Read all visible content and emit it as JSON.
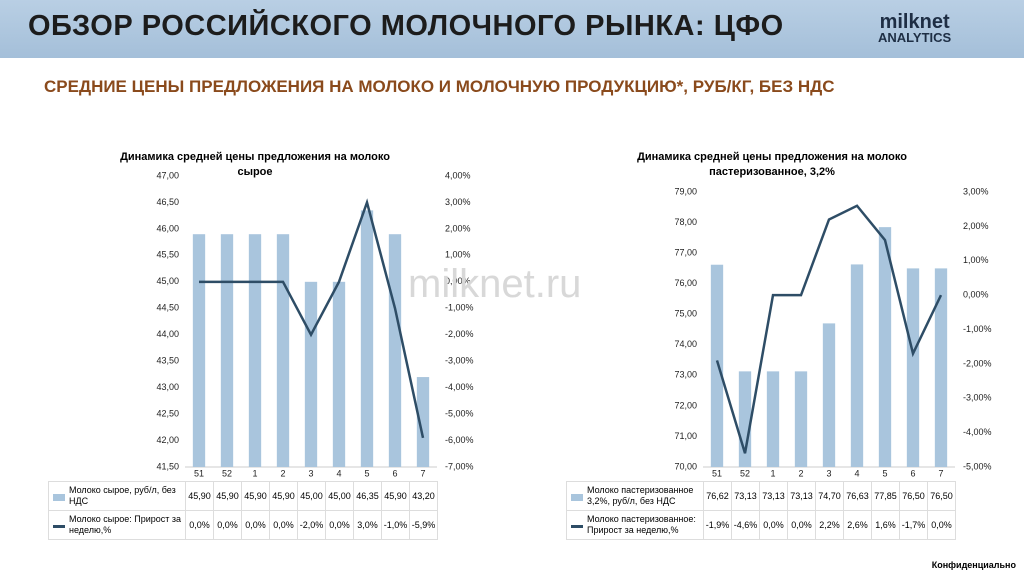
{
  "header": {
    "title": "ОБЗОР РОССИЙСКОГО МОЛОЧНОГО РЫНКА: ЦФО",
    "logo_name": "milknet",
    "logo_sub": "ANALYTICS"
  },
  "subtitle": "СРЕДНИЕ ЦЕНЫ ПРЕДЛОЖЕНИЯ НА МОЛОКО И МОЛОЧНУЮ ПРОДУКЦИЮ*, РУБ/КГ, БЕЗ НДС",
  "watermark": "milknet.ru",
  "footer": "Конфиденциально",
  "chart_data": [
    {
      "type": "combo",
      "title": "Динамика средней цены предложения на молоко сырое",
      "categories": [
        "51",
        "52",
        "1",
        "2",
        "3",
        "4",
        "5",
        "6",
        "7"
      ],
      "ylim": [
        41.5,
        47
      ],
      "yticks": [
        {
          "value": 41.5,
          "label": "41,50"
        },
        {
          "value": 42,
          "label": "42,00"
        },
        {
          "value": 42.5,
          "label": "42,50"
        },
        {
          "value": 43,
          "label": "43,00"
        },
        {
          "value": 43.5,
          "label": "43,50"
        },
        {
          "value": 44,
          "label": "44,00"
        },
        {
          "value": 44.5,
          "label": "44,50"
        },
        {
          "value": 45,
          "label": "45,00"
        },
        {
          "value": 45.5,
          "label": "45,50"
        },
        {
          "value": 46,
          "label": "46,00"
        },
        {
          "value": 46.5,
          "label": "46,50"
        },
        {
          "value": 47,
          "label": "47,00"
        }
      ],
      "y2lim": [
        -7,
        4
      ],
      "y2ticks": [
        {
          "value": -7,
          "label": "-7,00%"
        },
        {
          "value": -6,
          "label": "-6,00%"
        },
        {
          "value": -5,
          "label": "-5,00%"
        },
        {
          "value": -4,
          "label": "-4,00%"
        },
        {
          "value": -3,
          "label": "-3,00%"
        },
        {
          "value": -2,
          "label": "-2,00%"
        },
        {
          "value": -1,
          "label": "-1,00%"
        },
        {
          "value": 0,
          "label": "0,00%"
        },
        {
          "value": 1,
          "label": "1,00%"
        },
        {
          "value": 2,
          "label": "2,00%"
        },
        {
          "value": 3,
          "label": "3,00%"
        },
        {
          "value": 4,
          "label": "4,00%"
        }
      ],
      "series": [
        {
          "name": "Молоко сырое, руб/л, без НДС",
          "color": "#a9c5dd",
          "values": [
            45.9,
            45.9,
            45.9,
            45.9,
            45.0,
            45.0,
            46.35,
            45.9,
            43.2
          ],
          "value_labels": [
            "45,90",
            "45,90",
            "45,90",
            "45,90",
            "45,00",
            "45,00",
            "46,35",
            "45,90",
            "43,20"
          ]
        },
        {
          "name": "Молоко сырое: Прирост за неделю,%",
          "color": "#2e4d66",
          "axis": "y2",
          "values": [
            0.0,
            0.0,
            0.0,
            0.0,
            -2.0,
            0.0,
            3.0,
            -1.0,
            -5.9
          ],
          "value_labels": [
            "0,0%",
            "0,0%",
            "0,0%",
            "0,0%",
            "-2,0%",
            "0,0%",
            "3,0%",
            "-1,0%",
            "-5,9%"
          ]
        }
      ]
    },
    {
      "type": "combo",
      "title": "Динамика средней цены предложения на молоко пастеризованное, 3,2%",
      "categories": [
        "51",
        "52",
        "1",
        "2",
        "3",
        "4",
        "5",
        "6",
        "7"
      ],
      "ylim": [
        70,
        79
      ],
      "yticks": [
        {
          "value": 70,
          "label": "70,00"
        },
        {
          "value": 71,
          "label": "71,00"
        },
        {
          "value": 72,
          "label": "72,00"
        },
        {
          "value": 73,
          "label": "73,00"
        },
        {
          "value": 74,
          "label": "74,00"
        },
        {
          "value": 75,
          "label": "75,00"
        },
        {
          "value": 76,
          "label": "76,00"
        },
        {
          "value": 77,
          "label": "77,00"
        },
        {
          "value": 78,
          "label": "78,00"
        },
        {
          "value": 79,
          "label": "79,00"
        }
      ],
      "y2lim": [
        -5,
        3
      ],
      "y2ticks": [
        {
          "value": -5,
          "label": "-5,00%"
        },
        {
          "value": -4,
          "label": "-4,00%"
        },
        {
          "value": -3,
          "label": "-3,00%"
        },
        {
          "value": -2,
          "label": "-2,00%"
        },
        {
          "value": -1,
          "label": "-1,00%"
        },
        {
          "value": 0,
          "label": "0,00%"
        },
        {
          "value": 1,
          "label": "1,00%"
        },
        {
          "value": 2,
          "label": "2,00%"
        },
        {
          "value": 3,
          "label": "3,00%"
        }
      ],
      "series": [
        {
          "name": "Молоко пастеризованное 3,2%, руб/л, без НДС",
          "color": "#a9c5dd",
          "values": [
            76.62,
            73.13,
            73.13,
            73.13,
            74.7,
            76.63,
            77.85,
            76.5,
            76.5
          ],
          "value_labels": [
            "76,62",
            "73,13",
            "73,13",
            "73,13",
            "74,70",
            "76,63",
            "77,85",
            "76,50",
            "76,50"
          ]
        },
        {
          "name": "Молоко пастеризованное: Прирост за неделю,%",
          "color": "#2e4d66",
          "axis": "y2",
          "values": [
            -1.9,
            -4.6,
            0.0,
            0.0,
            2.2,
            2.6,
            1.6,
            -1.7,
            0.0
          ],
          "value_labels": [
            "-1,9%",
            "-4,6%",
            "0,0%",
            "0,0%",
            "2,2%",
            "2,6%",
            "1,6%",
            "-1,7%",
            "0,0%"
          ]
        }
      ]
    }
  ]
}
